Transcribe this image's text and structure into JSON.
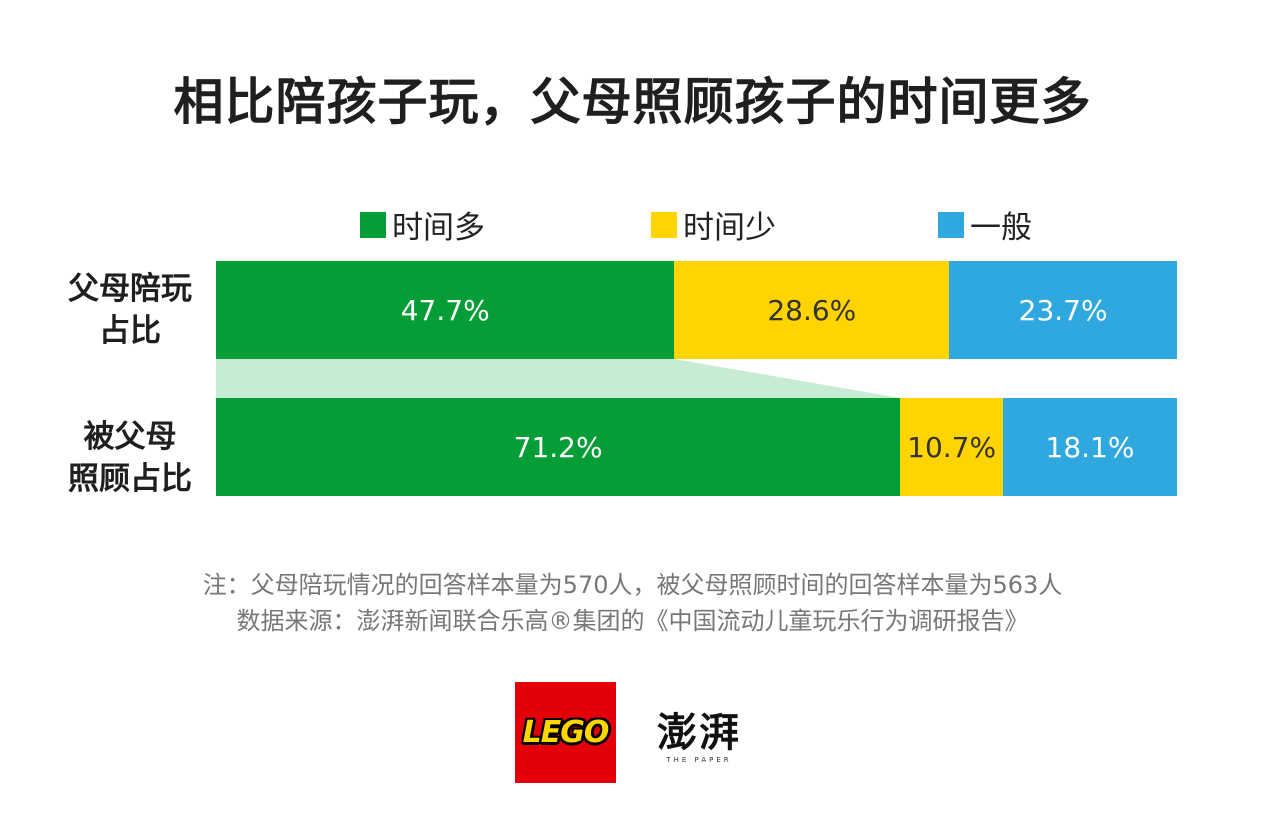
{
  "title": "相比陪孩子玩，父母照顾孩子的时间更多",
  "legend": [
    {
      "label": "时间多",
      "color": "#059E36"
    },
    {
      "label": "时间少",
      "color": "#FFD400"
    },
    {
      "label": "一般",
      "color": "#2FA8E0"
    }
  ],
  "chart_data": {
    "type": "bar",
    "orientation": "horizontal",
    "stacked": true,
    "normalized": true,
    "categories": [
      "父母陪玩占比",
      "被父母照顾占比"
    ],
    "category_labels": [
      [
        "父母陪玩",
        "占比"
      ],
      [
        "被父母",
        "照顾占比"
      ]
    ],
    "series": [
      {
        "name": "时间多",
        "color": "#059E36",
        "values": [
          47.7,
          71.2
        ],
        "labels": [
          "47.7%",
          "71.2%"
        ]
      },
      {
        "name": "时间少",
        "color": "#FFD400",
        "values": [
          28.6,
          10.7
        ],
        "labels": [
          "28.6%",
          "10.7%"
        ]
      },
      {
        "name": "一般",
        "color": "#2FA8E0",
        "values": [
          23.7,
          18.1
        ],
        "labels": [
          "23.7%",
          "18.1%"
        ]
      }
    ],
    "connector_color": "#C8EBD3",
    "label_colors": {
      "时间多": "#ffffff",
      "时间少": "#333333",
      "一般": "#ffffff"
    }
  },
  "notes": {
    "line1": "注：父母陪玩情况的回答样本量为570人，被父母照顾时间的回答样本量为563人",
    "line2": "数据来源：澎湃新闻联合乐高®集团的《中国流动儿童玩乐行为调研报告》"
  },
  "logos": {
    "lego": "LEGO",
    "paper_cn": "澎湃",
    "paper_en": "THE PAPER"
  }
}
